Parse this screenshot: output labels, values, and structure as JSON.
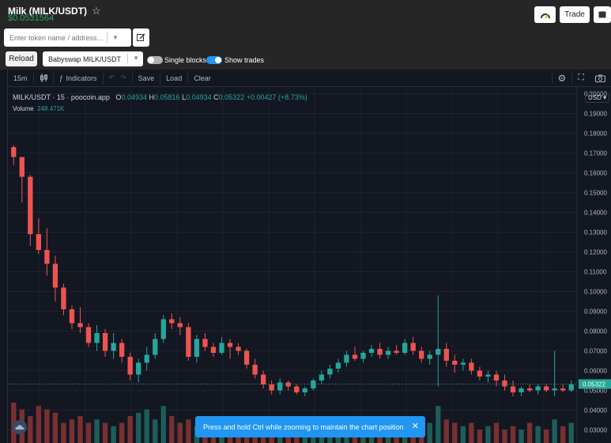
{
  "header": {
    "title": "Milk (MILK/USDT)",
    "price": "$0.0531564",
    "trade_label": "Trade",
    "search_placeholder": "Enter token name / address...",
    "reload_label": "Reload",
    "pair_select": "Babyswap MILK/USDT",
    "single_blocks_label": "Single blocks",
    "show_trades_label": "Show trades"
  },
  "toolbar": {
    "interval": "15m",
    "indicators_label": "Indicators",
    "save_label": "Save",
    "load_label": "Load",
    "clear_label": "Clear"
  },
  "legend": {
    "symbol": "MILK/USDT · 15 · poocoin.app",
    "open_label": "O",
    "open": "0.04934",
    "high_label": "H",
    "high": "0.05816",
    "low_label": "L",
    "low": "0.04934",
    "close_label": "C",
    "close": "0.05322",
    "change": "+0.00427 (+8.73%)",
    "volume_label": "Volume",
    "volume": "248.471K"
  },
  "currency_select": "USD",
  "toast": {
    "message": "Press and hold Ctrl while zooming to maintain the chart position"
  },
  "colors": {
    "up": "#26a69a",
    "down": "#ef5350",
    "accent": "#2196f3",
    "price_green": "#26a65b"
  },
  "chart_data": {
    "type": "candlestick",
    "y_axis_ticks": [
      "0.20000",
      "0.19000",
      "0.18000",
      "0.17000",
      "0.16000",
      "0.15000",
      "0.14000",
      "0.13000",
      "0.12000",
      "0.11000",
      "0.10000",
      "0.09000",
      "0.08000",
      "0.07000",
      "0.06000",
      "0.05000",
      "0.04000",
      "0.03000"
    ],
    "ylim": [
      0.03,
      0.2
    ],
    "last_price_label": "0.05322",
    "candles": [
      [
        0.173,
        0.174,
        0.164,
        0.168
      ],
      [
        0.168,
        0.168,
        0.145,
        0.158
      ],
      [
        0.158,
        0.159,
        0.123,
        0.129
      ],
      [
        0.129,
        0.137,
        0.119,
        0.121
      ],
      [
        0.121,
        0.132,
        0.108,
        0.114
      ],
      [
        0.114,
        0.118,
        0.095,
        0.102
      ],
      [
        0.102,
        0.104,
        0.088,
        0.091
      ],
      [
        0.091,
        0.093,
        0.081,
        0.084
      ],
      [
        0.084,
        0.092,
        0.079,
        0.082
      ],
      [
        0.082,
        0.084,
        0.072,
        0.074
      ],
      [
        0.074,
        0.083,
        0.07,
        0.079
      ],
      [
        0.079,
        0.081,
        0.067,
        0.07
      ],
      [
        0.07,
        0.079,
        0.066,
        0.074
      ],
      [
        0.074,
        0.076,
        0.064,
        0.067
      ],
      [
        0.067,
        0.069,
        0.055,
        0.058
      ],
      [
        0.058,
        0.066,
        0.054,
        0.064
      ],
      [
        0.064,
        0.072,
        0.06,
        0.068
      ],
      [
        0.068,
        0.079,
        0.066,
        0.076
      ],
      [
        0.076,
        0.088,
        0.074,
        0.086
      ],
      [
        0.086,
        0.089,
        0.081,
        0.084
      ],
      [
        0.084,
        0.087,
        0.078,
        0.082
      ],
      [
        0.082,
        0.084,
        0.065,
        0.067
      ],
      [
        0.067,
        0.078,
        0.064,
        0.076
      ],
      [
        0.076,
        0.079,
        0.07,
        0.072
      ],
      [
        0.072,
        0.074,
        0.067,
        0.069
      ],
      [
        0.069,
        0.077,
        0.068,
        0.074
      ],
      [
        0.074,
        0.076,
        0.066,
        0.072
      ],
      [
        0.072,
        0.074,
        0.068,
        0.07
      ],
      [
        0.07,
        0.071,
        0.061,
        0.063
      ],
      [
        0.063,
        0.066,
        0.056,
        0.058
      ],
      [
        0.058,
        0.06,
        0.051,
        0.053
      ],
      [
        0.053,
        0.055,
        0.048,
        0.05
      ],
      [
        0.05,
        0.056,
        0.048,
        0.054
      ],
      [
        0.054,
        0.055,
        0.05,
        0.052
      ],
      [
        0.052,
        0.053,
        0.048,
        0.049
      ],
      [
        0.049,
        0.052,
        0.047,
        0.051
      ],
      [
        0.051,
        0.056,
        0.05,
        0.055
      ],
      [
        0.055,
        0.06,
        0.053,
        0.058
      ],
      [
        0.058,
        0.063,
        0.056,
        0.061
      ],
      [
        0.061,
        0.066,
        0.059,
        0.064
      ],
      [
        0.064,
        0.07,
        0.062,
        0.068
      ],
      [
        0.068,
        0.072,
        0.065,
        0.066
      ],
      [
        0.066,
        0.07,
        0.064,
        0.069
      ],
      [
        0.069,
        0.073,
        0.067,
        0.071
      ],
      [
        0.071,
        0.074,
        0.066,
        0.068
      ],
      [
        0.068,
        0.072,
        0.066,
        0.07
      ],
      [
        0.07,
        0.073,
        0.068,
        0.069
      ],
      [
        0.069,
        0.076,
        0.068,
        0.074
      ],
      [
        0.074,
        0.077,
        0.068,
        0.07
      ],
      [
        0.07,
        0.072,
        0.064,
        0.066
      ],
      [
        0.066,
        0.07,
        0.063,
        0.068
      ],
      [
        0.068,
        0.098,
        0.052,
        0.071
      ],
      [
        0.071,
        0.074,
        0.062,
        0.065
      ],
      [
        0.065,
        0.068,
        0.059,
        0.063
      ],
      [
        0.063,
        0.066,
        0.06,
        0.064
      ],
      [
        0.064,
        0.066,
        0.058,
        0.06
      ],
      [
        0.06,
        0.062,
        0.055,
        0.057
      ],
      [
        0.057,
        0.06,
        0.054,
        0.058
      ],
      [
        0.058,
        0.06,
        0.052,
        0.055
      ],
      [
        0.055,
        0.058,
        0.05,
        0.052
      ],
      [
        0.052,
        0.055,
        0.047,
        0.049
      ],
      [
        0.049,
        0.052,
        0.047,
        0.051
      ],
      [
        0.051,
        0.053,
        0.049,
        0.05
      ],
      [
        0.05,
        0.053,
        0.048,
        0.052
      ],
      [
        0.052,
        0.053,
        0.049,
        0.05
      ],
      [
        0.05,
        0.07,
        0.047,
        0.051
      ],
      [
        0.051,
        0.053,
        0.049,
        0.05
      ],
      [
        0.05,
        0.055,
        0.049,
        0.053
      ]
    ],
    "volumes": [
      0.6,
      0.5,
      0.4,
      0.55,
      0.5,
      0.45,
      0.3,
      0.35,
      0.4,
      0.3,
      0.35,
      0.3,
      0.25,
      0.3,
      0.4,
      0.45,
      0.5,
      0.35,
      0.55,
      0.4,
      0.3,
      0.35,
      0.25,
      0.2,
      0.25,
      0.3,
      0.2,
      0.25,
      0.3,
      0.15,
      0.2,
      0.25,
      0.2,
      0.15,
      0.2,
      0.25,
      0.3,
      0.35,
      0.2,
      0.25,
      0.3,
      0.2,
      0.25,
      0.3,
      0.2,
      0.25,
      0.3,
      0.35,
      0.25,
      0.2,
      0.3,
      0.55,
      0.35,
      0.3,
      0.25,
      0.3,
      0.2,
      0.25,
      0.3,
      0.2,
      0.25,
      0.2,
      0.3,
      0.25,
      0.2,
      0.35,
      0.25,
      0.3
    ]
  }
}
